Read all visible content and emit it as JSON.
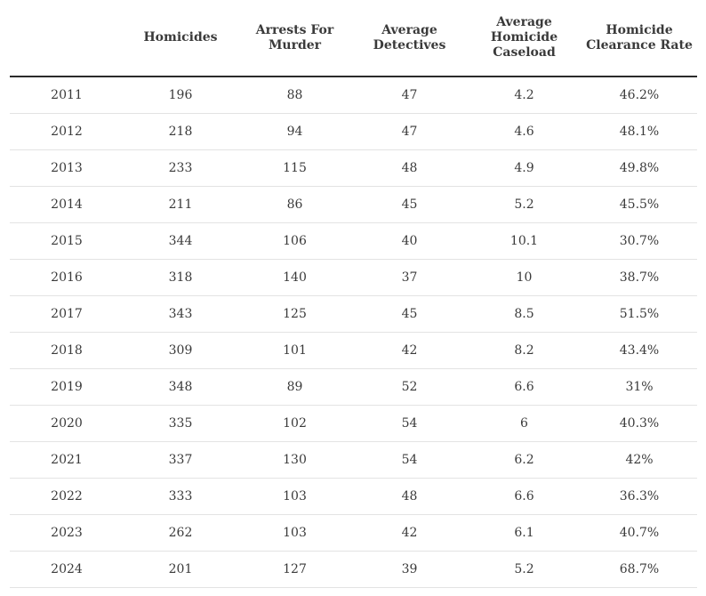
{
  "chart_data": {
    "type": "table",
    "columns": [
      "",
      "Homicides",
      "Arrests For Murder",
      "Average Detectives",
      "Average Homicide Caseload",
      "Homicide Clearance Rate"
    ],
    "rows": [
      [
        "2011",
        "196",
        "88",
        "47",
        "4.2",
        "46.2%"
      ],
      [
        "2012",
        "218",
        "94",
        "47",
        "4.6",
        "48.1%"
      ],
      [
        "2013",
        "233",
        "115",
        "48",
        "4.9",
        "49.8%"
      ],
      [
        "2014",
        "211",
        "86",
        "45",
        "5.2",
        "45.5%"
      ],
      [
        "2015",
        "344",
        "106",
        "40",
        "10.1",
        "30.7%"
      ],
      [
        "2016",
        "318",
        "140",
        "37",
        "10",
        "38.7%"
      ],
      [
        "2017",
        "343",
        "125",
        "45",
        "8.5",
        "51.5%"
      ],
      [
        "2018",
        "309",
        "101",
        "42",
        "8.2",
        "43.4%"
      ],
      [
        "2019",
        "348",
        "89",
        "52",
        "6.6",
        "31%"
      ],
      [
        "2020",
        "335",
        "102",
        "54",
        "6",
        "40.3%"
      ],
      [
        "2021",
        "337",
        "130",
        "54",
        "6.2",
        "42%"
      ],
      [
        "2022",
        "333",
        "103",
        "48",
        "6.6",
        "36.3%"
      ],
      [
        "2023",
        "262",
        "103",
        "42",
        "6.1",
        "40.7%"
      ],
      [
        "2024",
        "201",
        "127",
        "39",
        "5.2",
        "68.7%"
      ]
    ]
  }
}
